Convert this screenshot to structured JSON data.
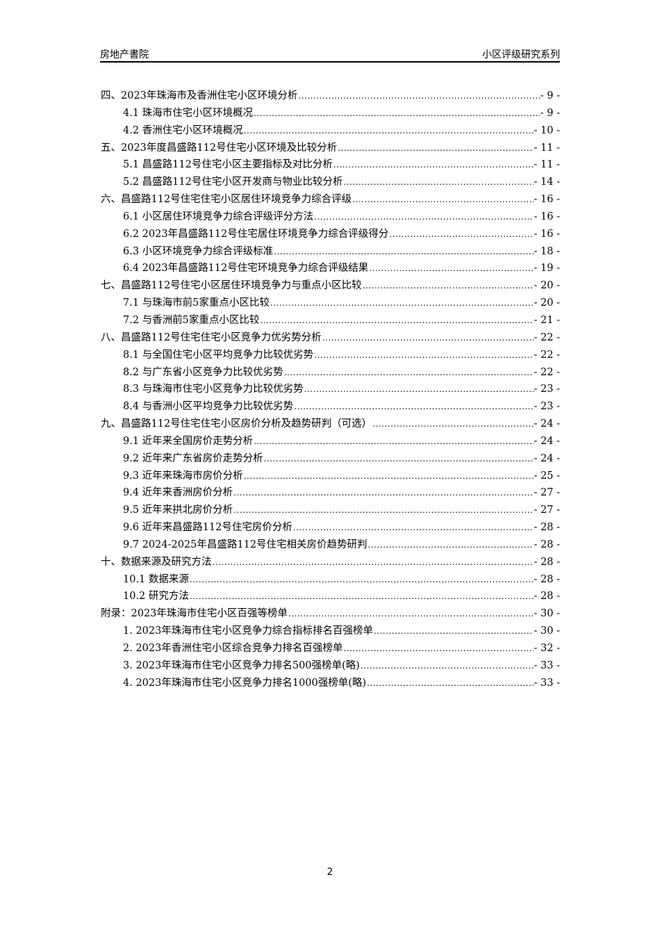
{
  "header": {
    "left": "房地产書院",
    "right": "小区评级研究系列"
  },
  "toc": [
    {
      "level": 1,
      "title": "四、2023年珠海市及香洲住宅小区环境分析",
      "page": "- 9 -"
    },
    {
      "level": 2,
      "title": "4.1 珠海市住宅小区环境概况",
      "page": "- 9 -"
    },
    {
      "level": 2,
      "title": "4.2 香洲住宅小区环境概况",
      "page": "- 10 -"
    },
    {
      "level": 1,
      "title": "五、2023年度昌盛路112号住宅小区环境及比较分析",
      "page": "- 11 -"
    },
    {
      "level": 2,
      "title": "5.1 昌盛路112号住宅小区主要指标及对比分析",
      "page": "- 11 -"
    },
    {
      "level": 2,
      "title": "5.2 昌盛路112号住宅小区开发商与物业比较分析",
      "page": "- 14 -"
    },
    {
      "level": 1,
      "title": "六、昌盛路112号住宅住宅小区居住环境竞争力综合评级",
      "page": "- 16 -"
    },
    {
      "level": 2,
      "title": "6.1 小区居住环境竞争力综合评级评分方法",
      "page": "- 16 -"
    },
    {
      "level": 2,
      "title": "6.2 2023年昌盛路112号住宅居住环境竞争力综合评级得分",
      "page": "- 16 -"
    },
    {
      "level": 2,
      "title": "6.3 小区环境竞争力综合评级标准",
      "page": "- 18 -"
    },
    {
      "level": 2,
      "title": "6.4 2023年昌盛路112号住宅环境竞争力综合评级结果",
      "page": "- 19 -"
    },
    {
      "level": 1,
      "title": "七、昌盛路112号住宅小区居住环境竞争力与重点小区比较",
      "page": "- 20 -"
    },
    {
      "level": 2,
      "title": "7.1 与珠海市前5家重点小区比较",
      "page": "- 20 -"
    },
    {
      "level": 2,
      "title": "7.2 与香洲前5家重点小区比较",
      "page": "- 21 -"
    },
    {
      "level": 1,
      "title": "八、昌盛路112号住宅住宅小区竞争力优劣势分析",
      "page": "- 22 -"
    },
    {
      "level": 2,
      "title": "8.1 与全国住宅小区平均竞争力比较优劣势",
      "page": "- 22 -"
    },
    {
      "level": 2,
      "title": "8.2 与广东省小区竞争力比较优劣势",
      "page": "- 22 -"
    },
    {
      "level": 2,
      "title": "8.3 与珠海市住宅小区竞争力比较优劣势",
      "page": "- 23 -"
    },
    {
      "level": 2,
      "title": "8.4 与香洲小区平均竞争力比较优劣势",
      "page": "- 23 -"
    },
    {
      "level": 1,
      "title": "九、昌盛路112号住宅住宅小区房价分析及趋势研判（可选）",
      "page": "- 24 -"
    },
    {
      "level": 2,
      "title": "9.1 近年来全国房价走势分析",
      "page": "- 24 -"
    },
    {
      "level": 2,
      "title": "9.2 近年来广东省房价走势分析",
      "page": "- 24 -"
    },
    {
      "level": 2,
      "title": "9.3 近年来珠海市房价分析",
      "page": "- 25 -"
    },
    {
      "level": 2,
      "title": "9.4 近年来香洲房价分析",
      "page": "- 27 -"
    },
    {
      "level": 2,
      "title": "9.5 近年来拱北房价分析",
      "page": "- 27 -"
    },
    {
      "level": 2,
      "title": "9.6 近年来昌盛路112号住宅房价分析",
      "page": "- 28 -"
    },
    {
      "level": 2,
      "title": "9.7 2024-2025年昌盛路112号住宅相关房价趋势研判",
      "page": "- 28 -"
    },
    {
      "level": 1,
      "title": "十、数据来源及研究方法",
      "page": "- 28 -"
    },
    {
      "level": 2,
      "title": "10.1 数据来源",
      "page": "- 28 -"
    },
    {
      "level": 2,
      "title": "10.2 研究方法",
      "page": "- 28 -"
    },
    {
      "level": 1,
      "title": "附录：2023年珠海市住宅小区百强等榜单",
      "page": "- 30 -"
    },
    {
      "level": 2,
      "title": "1. 2023年珠海市住宅小区竞争力综合指标排名百强榜单",
      "page": "- 30 -"
    },
    {
      "level": 2,
      "title": "2. 2023年香洲住宅小区综合竞争力排名百强榜单",
      "page": "- 32 -"
    },
    {
      "level": 2,
      "title": "3. 2023年珠海市住宅小区竞争力排名500强榜单(略)",
      "page": "- 33 -"
    },
    {
      "level": 2,
      "title": "4. 2023年珠海市住宅小区竞争力排名1000强榜单(略)",
      "page": "- 33 -"
    }
  ],
  "footer": {
    "page_number": "2"
  }
}
